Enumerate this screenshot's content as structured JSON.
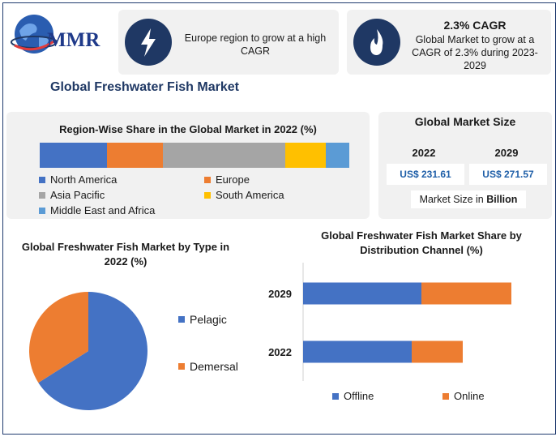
{
  "brand": {
    "logo_text": "MMR"
  },
  "header": {
    "card1_text": "Europe region to grow at a high CAGR",
    "card2_title": "2.3% CAGR",
    "card2_text": "Global Market to grow at a CAGR of 2.3% during 2023-2029",
    "card1_icon": "lightning-icon",
    "card2_icon": "flame-icon"
  },
  "title": "Global Freshwater Fish Market",
  "market_size": {
    "heading": "Global Market Size",
    "year_a": "2022",
    "year_b": "2029",
    "value_a": "US$ 231.61",
    "value_b": "US$ 271.57",
    "note_prefix": "Market Size in ",
    "note_unit": "Billion"
  },
  "colors": {
    "north_america": "#4472c4",
    "europe": "#ed7d31",
    "asia_pacific": "#a5a5a5",
    "south_america": "#ffc000",
    "mea": "#5b9bd5",
    "navy": "#1f3864"
  },
  "chart_data": [
    {
      "type": "bar",
      "orientation": "horizontal-stacked-100",
      "title": "Region-Wise Share in the Global Market in 2022 (%)",
      "categories": [
        "2022"
      ],
      "series": [
        {
          "name": "North America",
          "values": [
            21.8
          ]
        },
        {
          "name": "Europe",
          "values": [
            18.2
          ]
        },
        {
          "name": "Asia Pacific",
          "values": [
            39.5
          ]
        },
        {
          "name": "South America",
          "values": [
            13.2
          ]
        },
        {
          "name": "Middle East and Africa",
          "values": [
            7.6
          ]
        }
      ],
      "legend_position": "bottom"
    },
    {
      "type": "pie",
      "title": "Global Freshwater Fish Market by Type in 2022 (%)",
      "labels": [
        "Pelagic",
        "Demersal"
      ],
      "values": [
        66,
        34
      ],
      "legend_position": "right"
    },
    {
      "type": "bar",
      "orientation": "horizontal-stacked",
      "title": "Global Freshwater Fish Market Share by Distribution Channel (%)",
      "categories": [
        "2029",
        "2022"
      ],
      "series": [
        {
          "name": "Offline",
          "values": [
            146,
            134
          ]
        },
        {
          "name": "Online",
          "values": [
            111,
            63
          ]
        }
      ],
      "legend_position": "bottom"
    }
  ]
}
